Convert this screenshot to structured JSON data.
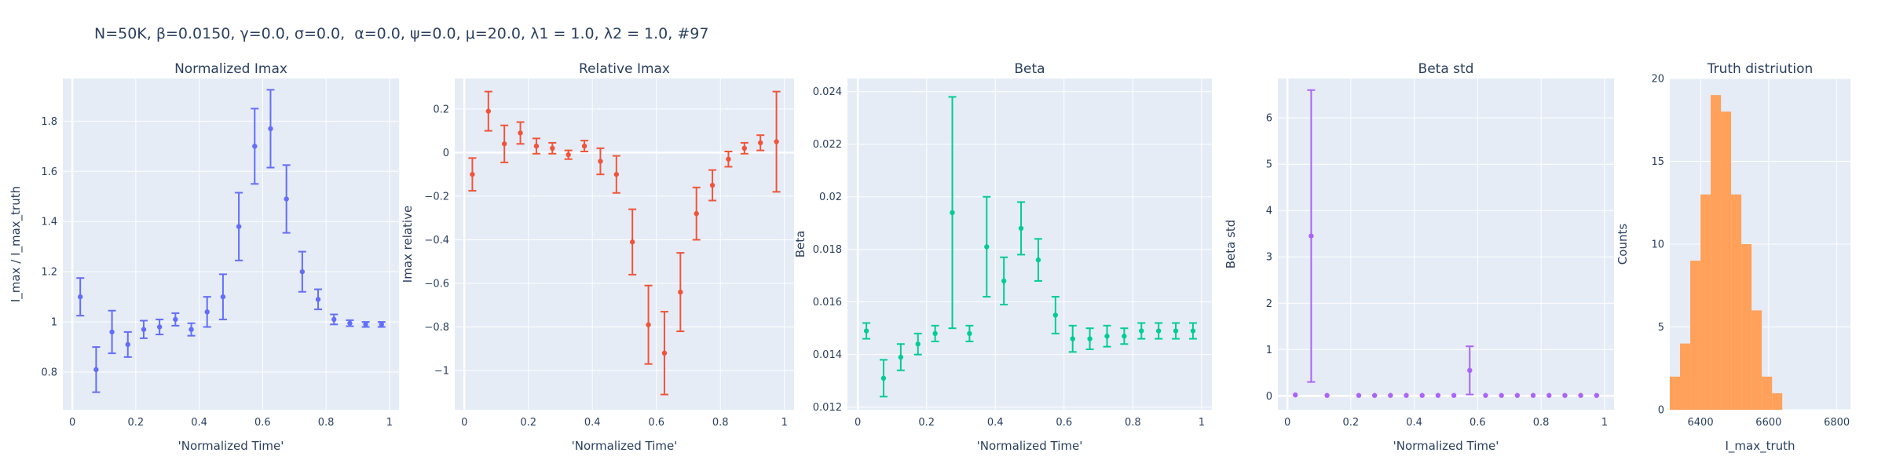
{
  "figure": {
    "title": "N=50K, β=0.0150, γ=0.0, σ=0.0,  α=0.0, ψ=0.0, μ=20.0, λ1 = 1.0, λ2 = 1.0, #97"
  },
  "chart_data": [
    {
      "type": "scatter",
      "title": "Normalized Imax",
      "xlabel": "'Normalized Time'",
      "ylabel": "I_max / I_max_truth",
      "color": "#636efa",
      "xlim": [
        -0.03,
        1.03
      ],
      "ylim": [
        0.65,
        1.97
      ],
      "xticks": [
        0,
        0.2,
        0.4,
        0.6,
        0.8,
        1
      ],
      "xtick_labels": [
        "0",
        "0.2",
        "0.4",
        "0.6",
        "0.8",
        "1"
      ],
      "yticks": [
        0.8,
        1,
        1.2,
        1.4,
        1.6,
        1.8
      ],
      "ytick_labels": [
        "0.8",
        "1",
        "1.2",
        "1.4",
        "1.6",
        "1.8"
      ],
      "x": [
        0.025,
        0.075,
        0.125,
        0.175,
        0.225,
        0.275,
        0.325,
        0.375,
        0.425,
        0.475,
        0.525,
        0.575,
        0.625,
        0.675,
        0.725,
        0.775,
        0.825,
        0.875,
        0.925,
        0.975
      ],
      "y": [
        1.1,
        0.81,
        0.96,
        0.91,
        0.97,
        0.98,
        1.01,
        0.97,
        1.04,
        1.1,
        1.38,
        1.7,
        1.77,
        1.49,
        1.2,
        1.09,
        1.01,
        0.995,
        0.99,
        0.99
      ],
      "err": [
        0.075,
        0.09,
        0.085,
        0.05,
        0.035,
        0.03,
        0.025,
        0.025,
        0.06,
        0.09,
        0.135,
        0.15,
        0.155,
        0.135,
        0.08,
        0.04,
        0.02,
        0.012,
        0.01,
        0.01
      ]
    },
    {
      "type": "scatter",
      "title": "Relative Imax",
      "xlabel": "'Normalized Time'",
      "ylabel": "Imax relative",
      "color": "#ef553b",
      "xlim": [
        -0.03,
        1.03
      ],
      "ylim": [
        -1.18,
        0.34
      ],
      "xticks": [
        0,
        0.2,
        0.4,
        0.6,
        0.8,
        1
      ],
      "xtick_labels": [
        "0",
        "0.2",
        "0.4",
        "0.6",
        "0.8",
        "1"
      ],
      "yticks": [
        -1,
        -0.8,
        -0.6,
        -0.4,
        -0.2,
        0,
        0.2
      ],
      "ytick_labels": [
        "−1",
        "−0.8",
        "−0.6",
        "−0.4",
        "−0.2",
        "0",
        "0.2"
      ],
      "x": [
        0.025,
        0.075,
        0.125,
        0.175,
        0.225,
        0.275,
        0.325,
        0.375,
        0.425,
        0.475,
        0.525,
        0.575,
        0.625,
        0.675,
        0.725,
        0.775,
        0.825,
        0.875,
        0.925,
        0.975
      ],
      "y": [
        -0.1,
        0.19,
        0.04,
        0.09,
        0.03,
        0.02,
        -0.01,
        0.03,
        -0.04,
        -0.1,
        -0.41,
        -0.79,
        -0.92,
        -0.64,
        -0.28,
        -0.15,
        -0.03,
        0.02,
        0.045,
        0.05
      ],
      "err": [
        0.075,
        0.09,
        0.085,
        0.05,
        0.035,
        0.025,
        0.02,
        0.025,
        0.06,
        0.085,
        0.15,
        0.18,
        0.19,
        0.18,
        0.12,
        0.07,
        0.035,
        0.025,
        0.035,
        0.23
      ]
    },
    {
      "type": "scatter",
      "title": "Beta",
      "xlabel": "'Normalized Time'",
      "ylabel": "Beta",
      "color": "#00cc96",
      "xlim": [
        -0.03,
        1.03
      ],
      "ylim": [
        0.0119,
        0.0245
      ],
      "xticks": [
        0,
        0.2,
        0.4,
        0.6,
        0.8,
        1
      ],
      "xtick_labels": [
        "0",
        "0.2",
        "0.4",
        "0.6",
        "0.8",
        "1"
      ],
      "yticks": [
        0.012,
        0.014,
        0.016,
        0.018,
        0.02,
        0.022,
        0.024
      ],
      "ytick_labels": [
        "0.012",
        "0.014",
        "0.016",
        "0.018",
        "0.02",
        "0.022",
        "0.024"
      ],
      "x": [
        0.025,
        0.075,
        0.125,
        0.175,
        0.225,
        0.275,
        0.325,
        0.375,
        0.425,
        0.475,
        0.525,
        0.575,
        0.625,
        0.675,
        0.725,
        0.775,
        0.825,
        0.875,
        0.925,
        0.975
      ],
      "y": [
        0.0149,
        0.0131,
        0.0139,
        0.0144,
        0.0148,
        0.0194,
        0.0148,
        0.0181,
        0.0168,
        0.0188,
        0.0176,
        0.0155,
        0.0146,
        0.0146,
        0.0147,
        0.0147,
        0.0149,
        0.0149,
        0.0149,
        0.0149
      ],
      "err": [
        0.0003,
        0.0007,
        0.0005,
        0.0004,
        0.0003,
        0.0044,
        0.0003,
        0.0019,
        0.0009,
        0.001,
        0.0008,
        0.0007,
        0.0005,
        0.0004,
        0.0004,
        0.0003,
        0.0003,
        0.0003,
        0.0003,
        0.0003
      ]
    },
    {
      "type": "scatter",
      "title": "Beta std",
      "xlabel": "'Normalized Time'",
      "ylabel": "Beta std",
      "color": "#ab63fa",
      "xlim": [
        -0.03,
        1.03
      ],
      "ylim": [
        -0.3,
        6.85
      ],
      "xticks": [
        0,
        0.2,
        0.4,
        0.6,
        0.8,
        1
      ],
      "xtick_labels": [
        "0",
        "0.2",
        "0.4",
        "0.6",
        "0.8",
        "1"
      ],
      "yticks": [
        0,
        1,
        2,
        3,
        4,
        5,
        6
      ],
      "ytick_labels": [
        "0",
        "1",
        "2",
        "3",
        "4",
        "5",
        "6"
      ],
      "x": [
        0.025,
        0.075,
        0.125,
        0.225,
        0.275,
        0.325,
        0.375,
        0.425,
        0.475,
        0.525,
        0.575,
        0.625,
        0.675,
        0.725,
        0.775,
        0.825,
        0.875,
        0.925,
        0.975
      ],
      "y": [
        0.02,
        3.45,
        0.01,
        0.01,
        0.01,
        0.01,
        0.01,
        0.01,
        0.01,
        0.01,
        0.55,
        0.01,
        0.01,
        0.01,
        0.01,
        0.01,
        0.01,
        0.01,
        0.01
      ],
      "err": [
        0,
        3.15,
        0,
        0,
        0,
        0,
        0,
        0,
        0,
        0,
        0.52,
        0,
        0,
        0,
        0,
        0,
        0,
        0,
        0
      ]
    },
    {
      "type": "bar",
      "title": "Truth distriution",
      "xlabel": "I_max_truth",
      "ylabel": "Counts",
      "color": "#ffa15a",
      "xlim": [
        6310,
        6840
      ],
      "ylim": [
        0,
        20
      ],
      "xticks": [
        6400,
        6600,
        6800
      ],
      "xtick_labels": [
        "6400",
        "6600",
        "6800"
      ],
      "yticks": [
        0,
        5,
        10,
        15,
        20
      ],
      "ytick_labels": [
        "0",
        "5",
        "10",
        "15",
        "20"
      ],
      "bin_start": 6310,
      "bin_width": 30,
      "counts": [
        2,
        4,
        9,
        13,
        19,
        18,
        13,
        10,
        6,
        2,
        1
      ]
    }
  ]
}
